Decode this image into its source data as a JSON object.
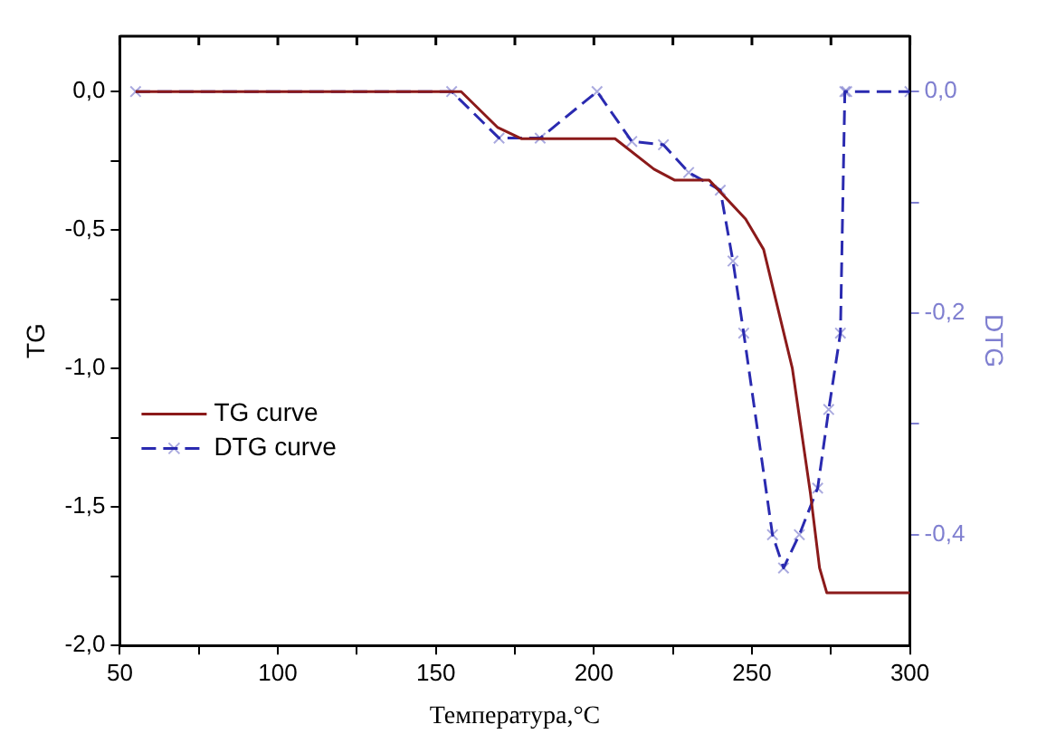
{
  "chart_data": {
    "type": "line",
    "xlabel": "Температура,°C",
    "ylabel": "TG",
    "y2label": "DTG",
    "xlim": [
      50,
      300
    ],
    "xticks": [
      50,
      {
        "value": 75,
        "label": null
      },
      100,
      {
        "value": 125,
        "label": null
      },
      150,
      {
        "value": 175,
        "label": null
      },
      200,
      {
        "value": 225,
        "label": null
      },
      250,
      {
        "value": 275,
        "label": null
      },
      300
    ],
    "ylim": [
      -2,
      0.2
    ],
    "yticks": [
      {
        "value": 0,
        "label": "0,0"
      },
      {
        "value": -0.25,
        "label": null
      },
      {
        "value": -0.5,
        "label": "-0,5"
      },
      {
        "value": -0.75,
        "label": null
      },
      {
        "value": -1,
        "label": "-1,0"
      },
      {
        "value": -1.25,
        "label": null
      },
      {
        "value": -1.5,
        "label": "-1,5"
      },
      {
        "value": -1.75,
        "label": null
      },
      {
        "value": -2,
        "label": "-2,0"
      }
    ],
    "y2lim": [
      -0.5,
      0.05
    ],
    "y2ticks": [
      {
        "value": 0,
        "label": "0,0"
      },
      {
        "value": -0.1,
        "label": null
      },
      {
        "value": -0.2,
        "label": "-0,2"
      },
      {
        "value": -0.3,
        "label": null
      },
      {
        "value": -0.4,
        "label": "-0,4"
      }
    ],
    "grid": false,
    "legend": "left",
    "series": [
      {
        "name": "TG curve",
        "color": "#8b1a1a",
        "marker": "none",
        "line_style": "solid",
        "x": [
          55,
          158,
          169.6,
          177,
          206.7,
          219,
          225.6,
          236.5,
          248,
          253.7,
          262.8,
          268.5,
          271.4,
          273.7,
          300
        ],
        "values": [
          0,
          0,
          -0.13,
          -0.17,
          -0.17,
          -0.28,
          -0.32,
          -0.32,
          -0.46,
          -0.57,
          -1.0,
          -1.45,
          -1.72,
          -1.81,
          -1.81
        ]
      },
      {
        "name": "DTG curve",
        "color": "#2a2ab0",
        "axis": "y2",
        "marker": "cross",
        "line_style": "dashed",
        "x": [
          55,
          155,
          170,
          183,
          201,
          212,
          222,
          230,
          240,
          244,
          247.4,
          256.5,
          260,
          265,
          270.8,
          274.3,
          278,
          279.4,
          280,
          300
        ],
        "values": [
          0,
          0,
          -0.042,
          -0.042,
          0,
          -0.045,
          -0.048,
          -0.073,
          -0.089,
          -0.153,
          -0.218,
          -0.4,
          -0.43,
          -0.4,
          -0.358,
          -0.287,
          -0.218,
          0,
          0,
          0
        ]
      }
    ]
  }
}
